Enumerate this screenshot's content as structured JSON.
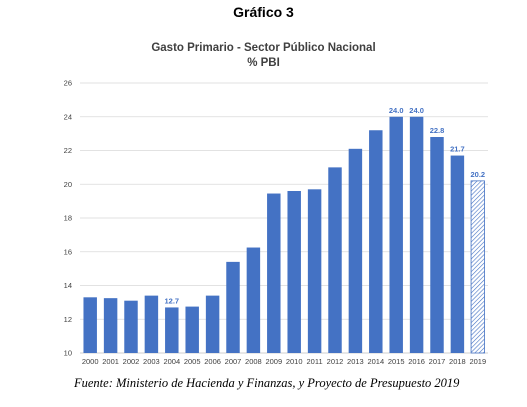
{
  "figure_label": "Gráfico 3",
  "source_note": "Fuente: Ministerio de Hacienda y Finanzas, y Proyecto de Presupuesto 2019",
  "colors": {
    "bar": "#4472c4",
    "grid": "#d9d9d9",
    "axis": "#bfbfbf"
  },
  "chart_data": {
    "type": "bar",
    "title": "Gasto Primario - Sector Público Nacional",
    "subtitle": "% PBI",
    "xlabel": "",
    "ylabel": "",
    "ylim": [
      10,
      26
    ],
    "yticks": [
      10,
      12,
      14,
      16,
      18,
      20,
      22,
      24,
      26
    ],
    "grid": true,
    "legend": "none",
    "categories": [
      "2000",
      "2001",
      "2002",
      "2003",
      "2004",
      "2005",
      "2006",
      "2007",
      "2008",
      "2009",
      "2010",
      "2011",
      "2012",
      "2013",
      "2014",
      "2015",
      "2016",
      "2017",
      "2018",
      "2019"
    ],
    "values": [
      13.3,
      13.25,
      13.1,
      13.4,
      12.7,
      12.75,
      13.4,
      15.4,
      16.25,
      19.45,
      19.6,
      19.7,
      21.0,
      22.1,
      23.2,
      24.0,
      24.0,
      22.8,
      21.7,
      20.2
    ],
    "data_labels": [
      {
        "category": "2004",
        "text": "12.7"
      },
      {
        "category": "2015",
        "text": "24.0"
      },
      {
        "category": "2016",
        "text": "24.0"
      },
      {
        "category": "2017",
        "text": "22.8"
      },
      {
        "category": "2018",
        "text": "21.7"
      },
      {
        "category": "2019",
        "text": "20.2"
      }
    ],
    "projected_categories": [
      "2019"
    ]
  }
}
